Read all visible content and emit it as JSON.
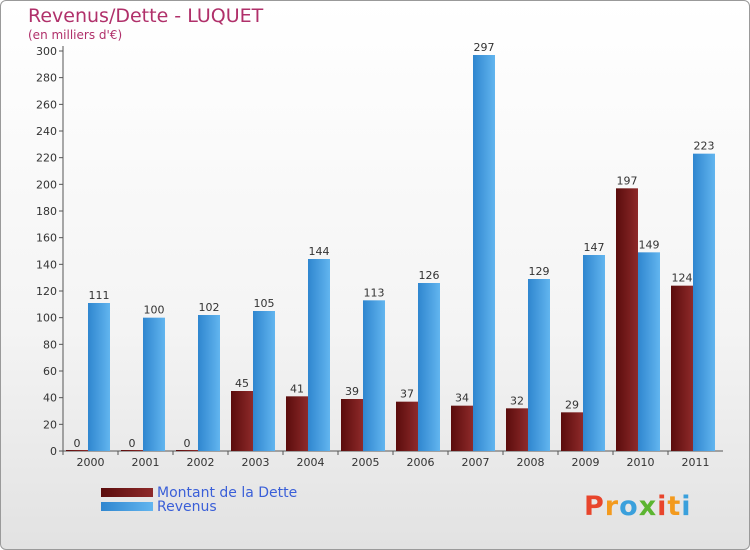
{
  "chart_data": {
    "type": "bar",
    "title": "Revenus/Dette - LUQUET",
    "subtitle": "(en milliers d'€)",
    "categories": [
      "2000",
      "2001",
      "2002",
      "2003",
      "2004",
      "2005",
      "2006",
      "2007",
      "2008",
      "2009",
      "2010",
      "2011"
    ],
    "series": [
      {
        "name": "Montant de la Dette",
        "color": "#7a1a1a",
        "values": [
          0,
          0,
          0,
          45,
          41,
          39,
          37,
          34,
          32,
          29,
          197,
          124
        ]
      },
      {
        "name": "Revenus",
        "color": "#4aa3e6",
        "values": [
          111,
          100,
          102,
          105,
          144,
          113,
          126,
          297,
          129,
          147,
          149,
          223
        ]
      }
    ],
    "ylim": [
      0,
      300
    ],
    "yticks": [
      0,
      20,
      40,
      60,
      80,
      100,
      120,
      140,
      160,
      180,
      200,
      220,
      240,
      260,
      280,
      300
    ],
    "grid": false,
    "legend_position": "bottom-left"
  },
  "brand": {
    "letters": [
      "P",
      "r",
      "o",
      "x",
      "i",
      "t",
      "i"
    ],
    "colors": [
      "#e8452c",
      "#f39a1e",
      "#3aa0dc",
      "#5cb531",
      "#e8452c",
      "#f39a1e",
      "#3aa0dc"
    ]
  }
}
